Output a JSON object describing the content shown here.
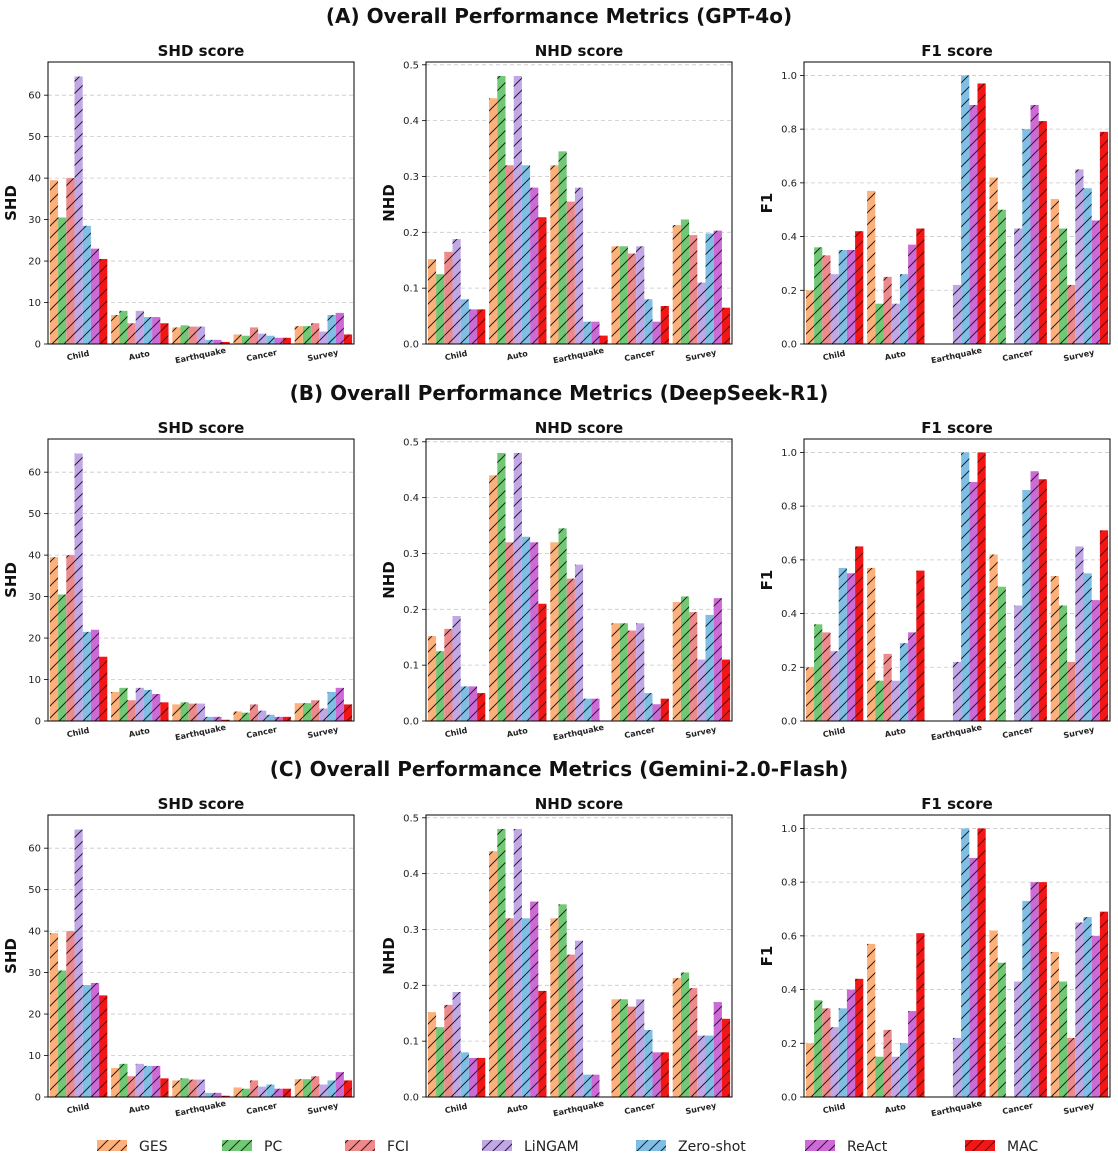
{
  "legend": [
    {
      "name": "GES",
      "color": "#FDB07A"
    },
    {
      "name": "PC",
      "color": "#71C975"
    },
    {
      "name": "FCI",
      "color": "#EE8A8C"
    },
    {
      "name": "LiNGAM",
      "color": "#C1A7E6"
    },
    {
      "name": "Zero-shot",
      "color": "#7FBFE6"
    },
    {
      "name": "ReAct",
      "color": "#CD6AD8"
    },
    {
      "name": "MAC",
      "color": "#F51515"
    }
  ],
  "hatch_color": "#222222",
  "rows": [
    {
      "title": "(A) Overall Performance Metrics (GPT-4o)"
    },
    {
      "title": "(B) Overall Performance Metrics (DeepSeek-R1)"
    },
    {
      "title": "(C) Overall Performance Metrics (Gemini-2.0-Flash)"
    }
  ],
  "chart_data": [
    {
      "type": "bar",
      "title": "SHD score",
      "ylabel": "SHD",
      "ylim": [
        0,
        68
      ],
      "yticks": [
        0,
        10,
        20,
        30,
        40,
        50,
        60
      ],
      "grid": true,
      "categories": [
        "Child",
        "Auto",
        "Earthquake",
        "Cancer",
        "Survey"
      ],
      "series": [
        {
          "name": "GES",
          "values": [
            39.5,
            7,
            4,
            2.3,
            4.3
          ]
        },
        {
          "name": "PC",
          "values": [
            30.5,
            8,
            4.5,
            2,
            4.3
          ]
        },
        {
          "name": "FCI",
          "values": [
            40,
            5,
            4.2,
            4,
            5
          ]
        },
        {
          "name": "LiNGAM",
          "values": [
            64.5,
            8,
            4.2,
            2.5,
            3
          ]
        },
        {
          "name": "Zero-shot",
          "values": [
            28.5,
            6.5,
            1,
            2,
            7
          ]
        },
        {
          "name": "ReAct",
          "values": [
            23,
            6.5,
            1,
            1.5,
            7.5
          ]
        },
        {
          "name": "MAC",
          "values": [
            20.5,
            5,
            0.5,
            1.5,
            2.3
          ]
        }
      ]
    },
    {
      "type": "bar",
      "title": "NHD score",
      "ylabel": "NHD",
      "ylim": [
        0,
        0.505
      ],
      "yticks": [
        0.0,
        0.1,
        0.2,
        0.3,
        0.4,
        0.5
      ],
      "grid": true,
      "categories": [
        "Child",
        "Auto",
        "Earthquake",
        "Cancer",
        "Survey"
      ],
      "series": [
        {
          "name": "GES",
          "values": [
            0.152,
            0.44,
            0.32,
            0.175,
            0.213
          ]
        },
        {
          "name": "PC",
          "values": [
            0.125,
            0.48,
            0.345,
            0.175,
            0.223
          ]
        },
        {
          "name": "FCI",
          "values": [
            0.165,
            0.32,
            0.255,
            0.162,
            0.195
          ]
        },
        {
          "name": "LiNGAM",
          "values": [
            0.188,
            0.48,
            0.28,
            0.175,
            0.11
          ]
        },
        {
          "name": "Zero-shot",
          "values": [
            0.08,
            0.32,
            0.04,
            0.08,
            0.198
          ]
        },
        {
          "name": "ReAct",
          "values": [
            0.062,
            0.28,
            0.04,
            0.04,
            0.203
          ]
        },
        {
          "name": "MAC",
          "values": [
            0.062,
            0.227,
            0.015,
            0.068,
            0.065
          ]
        }
      ]
    },
    {
      "type": "bar",
      "title": "F1 score",
      "ylabel": "F1",
      "ylim": [
        0,
        1.05
      ],
      "yticks": [
        0.0,
        0.2,
        0.4,
        0.6,
        0.8,
        1.0
      ],
      "grid": true,
      "categories": [
        "Child",
        "Auto",
        "Earthquake",
        "Cancer",
        "Survey"
      ],
      "series": [
        {
          "name": "GES",
          "values": [
            0.2,
            0.57,
            0.0,
            0.62,
            0.54
          ]
        },
        {
          "name": "PC",
          "values": [
            0.36,
            0.15,
            0.0,
            0.5,
            0.43
          ]
        },
        {
          "name": "FCI",
          "values": [
            0.33,
            0.25,
            0.0,
            0.0,
            0.22
          ]
        },
        {
          "name": "LiNGAM",
          "values": [
            0.26,
            0.15,
            0.22,
            0.43,
            0.65
          ]
        },
        {
          "name": "Zero-shot",
          "values": [
            0.35,
            0.26,
            1.0,
            0.8,
            0.58
          ]
        },
        {
          "name": "ReAct",
          "values": [
            0.35,
            0.37,
            0.89,
            0.89,
            0.46
          ]
        },
        {
          "name": "MAC",
          "values": [
            0.42,
            0.43,
            0.97,
            0.83,
            0.79
          ]
        }
      ]
    },
    {
      "type": "bar",
      "title": "SHD score",
      "ylabel": "SHD",
      "ylim": [
        0,
        68
      ],
      "yticks": [
        0,
        10,
        20,
        30,
        40,
        50,
        60
      ],
      "grid": true,
      "categories": [
        "Child",
        "Auto",
        "Earthquake",
        "Cancer",
        "Survey"
      ],
      "series": [
        {
          "name": "GES",
          "values": [
            39.5,
            7,
            4,
            2.3,
            4.3
          ]
        },
        {
          "name": "PC",
          "values": [
            30.5,
            8,
            4.5,
            2,
            4.3
          ]
        },
        {
          "name": "FCI",
          "values": [
            40,
            5,
            4.2,
            4,
            5
          ]
        },
        {
          "name": "LiNGAM",
          "values": [
            64.5,
            8,
            4.2,
            2.5,
            3
          ]
        },
        {
          "name": "Zero-shot",
          "values": [
            21.5,
            7.5,
            1,
            1.5,
            7
          ]
        },
        {
          "name": "ReAct",
          "values": [
            22,
            6.5,
            1,
            1,
            8
          ]
        },
        {
          "name": "MAC",
          "values": [
            15.5,
            4.5,
            0.3,
            1,
            4
          ]
        }
      ]
    },
    {
      "type": "bar",
      "title": "NHD score",
      "ylabel": "NHD",
      "ylim": [
        0,
        0.505
      ],
      "yticks": [
        0.0,
        0.1,
        0.2,
        0.3,
        0.4,
        0.5
      ],
      "grid": true,
      "categories": [
        "Child",
        "Auto",
        "Earthquake",
        "Cancer",
        "Survey"
      ],
      "series": [
        {
          "name": "GES",
          "values": [
            0.152,
            0.44,
            0.32,
            0.175,
            0.213
          ]
        },
        {
          "name": "PC",
          "values": [
            0.125,
            0.48,
            0.345,
            0.175,
            0.223
          ]
        },
        {
          "name": "FCI",
          "values": [
            0.165,
            0.32,
            0.255,
            0.162,
            0.195
          ]
        },
        {
          "name": "LiNGAM",
          "values": [
            0.188,
            0.48,
            0.28,
            0.175,
            0.11
          ]
        },
        {
          "name": "Zero-shot",
          "values": [
            0.062,
            0.33,
            0.04,
            0.05,
            0.19
          ]
        },
        {
          "name": "ReAct",
          "values": [
            0.062,
            0.32,
            0.04,
            0.03,
            0.22
          ]
        },
        {
          "name": "MAC",
          "values": [
            0.05,
            0.21,
            0.0,
            0.04,
            0.11
          ]
        }
      ]
    },
    {
      "type": "bar",
      "title": "F1 score",
      "ylabel": "F1",
      "ylim": [
        0,
        1.05
      ],
      "yticks": [
        0.0,
        0.2,
        0.4,
        0.6,
        0.8,
        1.0
      ],
      "grid": true,
      "categories": [
        "Child",
        "Auto",
        "Earthquake",
        "Cancer",
        "Survey"
      ],
      "series": [
        {
          "name": "GES",
          "values": [
            0.2,
            0.57,
            0.0,
            0.62,
            0.54
          ]
        },
        {
          "name": "PC",
          "values": [
            0.36,
            0.15,
            0.0,
            0.5,
            0.43
          ]
        },
        {
          "name": "FCI",
          "values": [
            0.33,
            0.25,
            0.0,
            0.0,
            0.22
          ]
        },
        {
          "name": "LiNGAM",
          "values": [
            0.26,
            0.15,
            0.22,
            0.43,
            0.65
          ]
        },
        {
          "name": "Zero-shot",
          "values": [
            0.57,
            0.29,
            1.0,
            0.86,
            0.55
          ]
        },
        {
          "name": "ReAct",
          "values": [
            0.55,
            0.33,
            0.89,
            0.93,
            0.45
          ]
        },
        {
          "name": "MAC",
          "values": [
            0.65,
            0.56,
            1.0,
            0.9,
            0.71
          ]
        }
      ]
    },
    {
      "type": "bar",
      "title": "SHD score",
      "ylabel": "SHD",
      "ylim": [
        0,
        68
      ],
      "yticks": [
        0,
        10,
        20,
        30,
        40,
        50,
        60
      ],
      "grid": true,
      "categories": [
        "Child",
        "Auto",
        "Earthquake",
        "Cancer",
        "Survey"
      ],
      "series": [
        {
          "name": "GES",
          "values": [
            39.5,
            7,
            4,
            2.3,
            4.3
          ]
        },
        {
          "name": "PC",
          "values": [
            30.5,
            8,
            4.5,
            2,
            4.3
          ]
        },
        {
          "name": "FCI",
          "values": [
            40,
            5,
            4.2,
            4,
            5
          ]
        },
        {
          "name": "LiNGAM",
          "values": [
            64.5,
            8,
            4.2,
            2.5,
            3
          ]
        },
        {
          "name": "Zero-shot",
          "values": [
            27,
            7.5,
            1,
            3,
            4
          ]
        },
        {
          "name": "ReAct",
          "values": [
            27.5,
            7.5,
            1,
            2,
            6
          ]
        },
        {
          "name": "MAC",
          "values": [
            24.5,
            4.5,
            0.3,
            2,
            4
          ]
        }
      ]
    },
    {
      "type": "bar",
      "title": "NHD score",
      "ylabel": "NHD",
      "ylim": [
        0,
        0.505
      ],
      "yticks": [
        0.0,
        0.1,
        0.2,
        0.3,
        0.4,
        0.5
      ],
      "grid": true,
      "categories": [
        "Child",
        "Auto",
        "Earthquake",
        "Cancer",
        "Survey"
      ],
      "series": [
        {
          "name": "GES",
          "values": [
            0.152,
            0.44,
            0.32,
            0.175,
            0.213
          ]
        },
        {
          "name": "PC",
          "values": [
            0.125,
            0.48,
            0.345,
            0.175,
            0.223
          ]
        },
        {
          "name": "FCI",
          "values": [
            0.165,
            0.32,
            0.255,
            0.162,
            0.195
          ]
        },
        {
          "name": "LiNGAM",
          "values": [
            0.188,
            0.48,
            0.28,
            0.175,
            0.11
          ]
        },
        {
          "name": "Zero-shot",
          "values": [
            0.08,
            0.32,
            0.04,
            0.12,
            0.11
          ]
        },
        {
          "name": "ReAct",
          "values": [
            0.07,
            0.35,
            0.04,
            0.08,
            0.17
          ]
        },
        {
          "name": "MAC",
          "values": [
            0.07,
            0.19,
            0.0,
            0.08,
            0.14
          ]
        }
      ]
    },
    {
      "type": "bar",
      "title": "F1 score",
      "ylabel": "F1",
      "ylim": [
        0,
        1.05
      ],
      "yticks": [
        0.0,
        0.2,
        0.4,
        0.6,
        0.8,
        1.0
      ],
      "grid": true,
      "categories": [
        "Child",
        "Auto",
        "Earthquake",
        "Cancer",
        "Survey"
      ],
      "series": [
        {
          "name": "GES",
          "values": [
            0.2,
            0.57,
            0.0,
            0.62,
            0.54
          ]
        },
        {
          "name": "PC",
          "values": [
            0.36,
            0.15,
            0.0,
            0.5,
            0.43
          ]
        },
        {
          "name": "FCI",
          "values": [
            0.33,
            0.25,
            0.0,
            0.0,
            0.22
          ]
        },
        {
          "name": "LiNGAM",
          "values": [
            0.26,
            0.15,
            0.22,
            0.43,
            0.65
          ]
        },
        {
          "name": "Zero-shot",
          "values": [
            0.33,
            0.2,
            1.0,
            0.73,
            0.67
          ]
        },
        {
          "name": "ReAct",
          "values": [
            0.4,
            0.32,
            0.89,
            0.8,
            0.6
          ]
        },
        {
          "name": "MAC",
          "values": [
            0.44,
            0.61,
            1.0,
            0.8,
            0.69
          ]
        }
      ]
    }
  ]
}
